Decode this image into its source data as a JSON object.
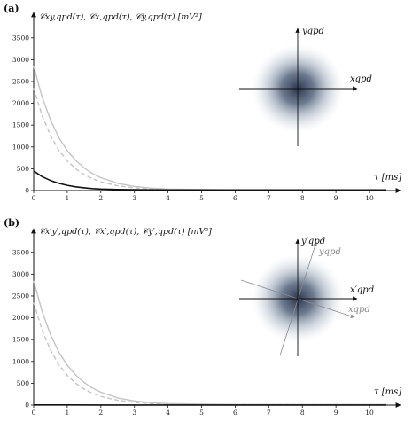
{
  "chart_data": [
    {
      "type": "line",
      "panel_label": "(a)",
      "ylabel": "𝒞xy,qpd(τ), 𝒞x,qpd(τ), 𝒞y,qpd(τ)  [mV²]",
      "xlabel": "τ  [ms]",
      "xlim": [
        0,
        10.5
      ],
      "ylim": [
        0,
        3800
      ],
      "x_ticks": [
        "0",
        "1",
        "2",
        "3",
        "4",
        "5",
        "6",
        "7",
        "8",
        "9",
        "10"
      ],
      "y_ticks": [
        "0",
        "500",
        "1000",
        "1500",
        "2000",
        "2500",
        "3000",
        "3500"
      ],
      "grid": false,
      "series": [
        {
          "style": "solid-gray",
          "color": "#c4c4c4",
          "x": [
            0,
            0.25,
            0.5,
            0.75,
            1,
            1.25,
            1.5,
            1.75,
            2,
            2.5,
            3,
            3.5,
            4,
            5,
            6,
            8,
            10.5
          ],
          "y": [
            2850,
            2145,
            1615,
            1215,
            915,
            690,
            520,
            390,
            295,
            165,
            95,
            55,
            35,
            20,
            15,
            12,
            12
          ]
        },
        {
          "style": "dashed-gray",
          "color": "#c4c4c4",
          "x": [
            0,
            0.25,
            0.5,
            0.75,
            1,
            1.25,
            1.5,
            1.75,
            2,
            2.5,
            3,
            3.5,
            4,
            5,
            6,
            8,
            10.5
          ],
          "y": [
            2350,
            1720,
            1260,
            925,
            680,
            500,
            365,
            270,
            200,
            110,
            60,
            35,
            25,
            18,
            14,
            12,
            12
          ]
        },
        {
          "style": "solid-black",
          "color": "#111111",
          "x": [
            0,
            0.25,
            0.5,
            0.75,
            1,
            1.25,
            1.5,
            1.75,
            2,
            2.5,
            3,
            4,
            5,
            6,
            8,
            10.5
          ],
          "y": [
            450,
            320,
            230,
            165,
            120,
            85,
            62,
            45,
            35,
            25,
            20,
            15,
            15,
            15,
            15,
            15
          ]
        }
      ],
      "inset": {
        "x_axis_label": "xqpd",
        "y_axis_label": "yqpd",
        "content": "scatter cloud of QPD signals"
      }
    },
    {
      "type": "line",
      "panel_label": "(b)",
      "ylabel": "𝒞x′y′,qpd(τ), 𝒞x′,qpd(τ), 𝒞y′,qpd(τ)  [mV²]",
      "xlabel": "τ  [ms]",
      "xlim": [
        0,
        10.5
      ],
      "ylim": [
        0,
        3800
      ],
      "x_ticks": [
        "0",
        "1",
        "2",
        "3",
        "4",
        "5",
        "6",
        "7",
        "8",
        "9",
        "10"
      ],
      "y_ticks": [
        "0",
        "500",
        "1000",
        "1500",
        "2000",
        "2500",
        "3000",
        "3500"
      ],
      "grid": false,
      "series": [
        {
          "style": "solid-gray",
          "color": "#c4c4c4",
          "x": [
            0,
            0.25,
            0.5,
            0.75,
            1,
            1.25,
            1.5,
            1.75,
            2,
            2.5,
            3,
            3.5,
            4,
            5,
            6,
            8,
            10.5
          ],
          "y": [
            2850,
            2145,
            1615,
            1215,
            915,
            690,
            520,
            390,
            295,
            165,
            95,
            55,
            35,
            20,
            15,
            12,
            12
          ]
        },
        {
          "style": "dashed-gray",
          "color": "#c4c4c4",
          "x": [
            0,
            0.25,
            0.5,
            0.75,
            1,
            1.25,
            1.5,
            1.75,
            2,
            2.5,
            3,
            3.5,
            4,
            5,
            6,
            8,
            10.5
          ],
          "y": [
            2350,
            1720,
            1260,
            925,
            680,
            500,
            365,
            270,
            200,
            110,
            60,
            35,
            25,
            18,
            14,
            12,
            12
          ]
        },
        {
          "style": "solid-black",
          "color": "#111111",
          "x": [
            0,
            1,
            2,
            3,
            4,
            5,
            6,
            7,
            8,
            9,
            10.5
          ],
          "y": [
            5,
            4,
            3,
            3,
            3,
            3,
            3,
            3,
            3,
            3,
            3
          ]
        }
      ],
      "inset": {
        "x_axis_label": "x′qpd",
        "y_axis_label": "y′qpd",
        "rotated_x_label": "xqpd",
        "rotated_y_label": "yqpd",
        "content": "scatter cloud of QPD signals with rotated axes"
      }
    }
  ]
}
